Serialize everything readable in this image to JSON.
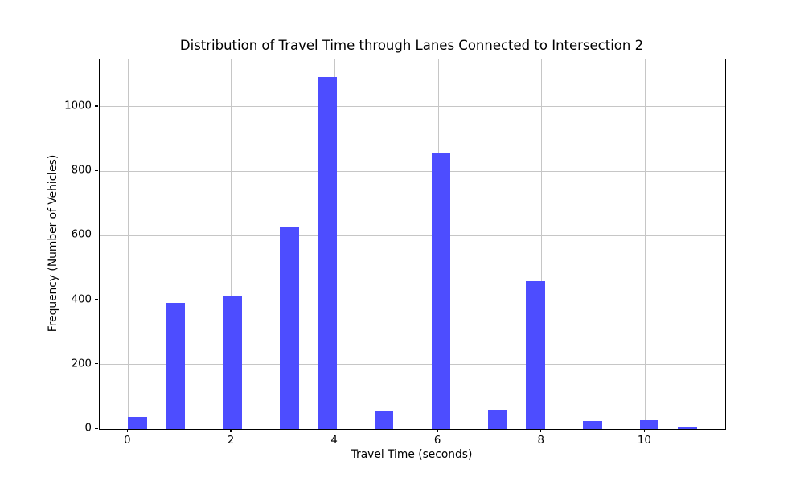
{
  "chart_data": {
    "type": "bar",
    "subtype": "histogram",
    "title": "Distribution of Travel Time through Lanes Connected to Intersection 2",
    "xlabel": "Travel Time (seconds)",
    "ylabel": "Frequency (Number of Vehicles)",
    "xlim": [
      -0.55,
      11.55
    ],
    "ylim": [
      0,
      1147
    ],
    "x_ticks": [
      0,
      2,
      4,
      6,
      8,
      10
    ],
    "y_ticks": [
      0,
      200,
      400,
      600,
      800,
      1000
    ],
    "grid": true,
    "legend": false,
    "bar_color": "#4d4dff",
    "grid_color": "#c6c6c6",
    "axis_color": "#000000",
    "bin_width": 0.3667,
    "bars": [
      {
        "x0": 0.0,
        "x1": 0.3667,
        "count": 38
      },
      {
        "x0": 0.7333,
        "x1": 1.1,
        "count": 391
      },
      {
        "x0": 1.8333,
        "x1": 2.2,
        "count": 415
      },
      {
        "x0": 2.9333,
        "x1": 3.3,
        "count": 625
      },
      {
        "x0": 3.6667,
        "x1": 4.0333,
        "count": 1093
      },
      {
        "x0": 4.7667,
        "x1": 5.1333,
        "count": 56
      },
      {
        "x0": 5.8667,
        "x1": 6.2333,
        "count": 858
      },
      {
        "x0": 6.9667,
        "x1": 7.3333,
        "count": 61
      },
      {
        "x0": 7.7,
        "x1": 8.0667,
        "count": 458
      },
      {
        "x0": 8.8,
        "x1": 9.1667,
        "count": 25
      },
      {
        "x0": 9.9,
        "x1": 10.2667,
        "count": 28
      },
      {
        "x0": 10.6333,
        "x1": 11.0,
        "count": 8
      }
    ]
  }
}
